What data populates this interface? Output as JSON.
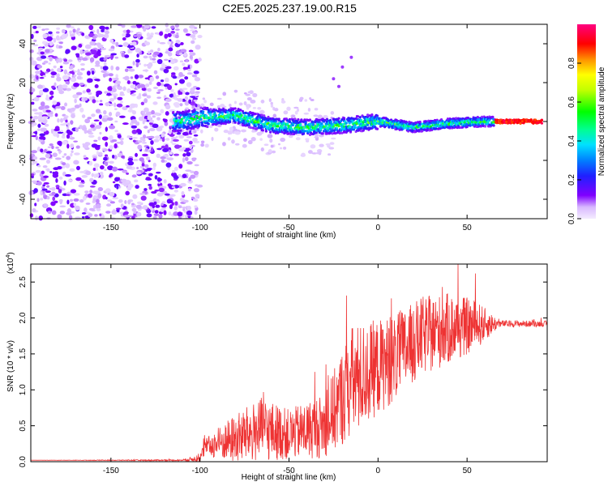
{
  "title": "C2E5.2025.237.19.00.R15",
  "chart_data": [
    {
      "type": "heatmap",
      "xlabel": "Height of straight line (km)",
      "ylabel": "Frequency (Hz)",
      "xlim": [
        -195,
        95
      ],
      "ylim": [
        -50,
        50
      ],
      "xticks": [
        -150,
        -100,
        -50,
        0,
        50
      ],
      "xtick_labels": [
        "-150",
        "-100",
        "-50",
        "0",
        "50"
      ],
      "yticks": [
        -40,
        -20,
        0,
        20,
        40
      ],
      "ytick_labels": [
        "-40",
        "-20",
        "0",
        "20",
        "40"
      ],
      "description_ridge": [
        {
          "x": -195,
          "f": 0
        },
        {
          "x": -110,
          "f": 0
        },
        {
          "x": -100,
          "f": 2
        },
        {
          "x": -80,
          "f": 3
        },
        {
          "x": -60,
          "f": -2
        },
        {
          "x": -40,
          "f": -3
        },
        {
          "x": -20,
          "f": -2
        },
        {
          "x": 0,
          "f": 0
        },
        {
          "x": 20,
          "f": -3
        },
        {
          "x": 40,
          "f": -1
        },
        {
          "x": 60,
          "f": 0
        },
        {
          "x": 95,
          "f": 0
        }
      ],
      "colorbar": {
        "label": "Normalized spectral amplitude",
        "range": [
          0.0,
          1.0
        ],
        "ticks": [
          0.0,
          0.2,
          0.4,
          0.6,
          0.8
        ],
        "tick_labels": [
          "0.0",
          "0.2",
          "0.4",
          "0.6",
          "0.8"
        ]
      }
    },
    {
      "type": "line",
      "xlabel": "Height of straight line (km)",
      "ylabel": "SNR (10 * v/v)",
      "y_multiplier": "(x10",
      "y_multiplier_exp": "4",
      "y_multiplier_close": ")",
      "xlim": [
        -195,
        95
      ],
      "ylim": [
        0,
        2.75
      ],
      "xticks": [
        -150,
        -100,
        -50,
        0,
        50
      ],
      "xtick_labels": [
        "-150",
        "-100",
        "-50",
        "0",
        "50"
      ],
      "yticks": [
        0.0,
        0.5,
        1.0,
        1.5,
        2.0,
        2.5
      ],
      "ytick_labels": [
        "0.0",
        "0.5",
        "1.0",
        "1.5",
        "2.0",
        "2.5"
      ],
      "series": [
        {
          "name": "SNR",
          "color": "#ee3333",
          "envelope": [
            {
              "x": -195,
              "base": 0.02,
              "amp": 0.0
            },
            {
              "x": -110,
              "base": 0.02,
              "amp": 0.01
            },
            {
              "x": -100,
              "base": 0.05,
              "amp": 0.05
            },
            {
              "x": -97,
              "base": 0.2,
              "amp": 0.12
            },
            {
              "x": -80,
              "base": 0.32,
              "amp": 0.35
            },
            {
              "x": -65,
              "base": 0.45,
              "amp": 0.45
            },
            {
              "x": -50,
              "base": 0.38,
              "amp": 0.35
            },
            {
              "x": -30,
              "base": 0.5,
              "amp": 0.45
            },
            {
              "x": -15,
              "base": 1.1,
              "amp": 0.8
            },
            {
              "x": -5,
              "base": 1.25,
              "amp": 0.7
            },
            {
              "x": 10,
              "base": 1.45,
              "amp": 0.6
            },
            {
              "x": 25,
              "base": 1.75,
              "amp": 0.55
            },
            {
              "x": 40,
              "base": 1.85,
              "amp": 0.5
            },
            {
              "x": 55,
              "base": 1.9,
              "amp": 0.35
            },
            {
              "x": 68,
              "base": 1.92,
              "amp": 0.05
            },
            {
              "x": 95,
              "base": 1.92,
              "amp": 0.04
            }
          ]
        }
      ]
    }
  ]
}
